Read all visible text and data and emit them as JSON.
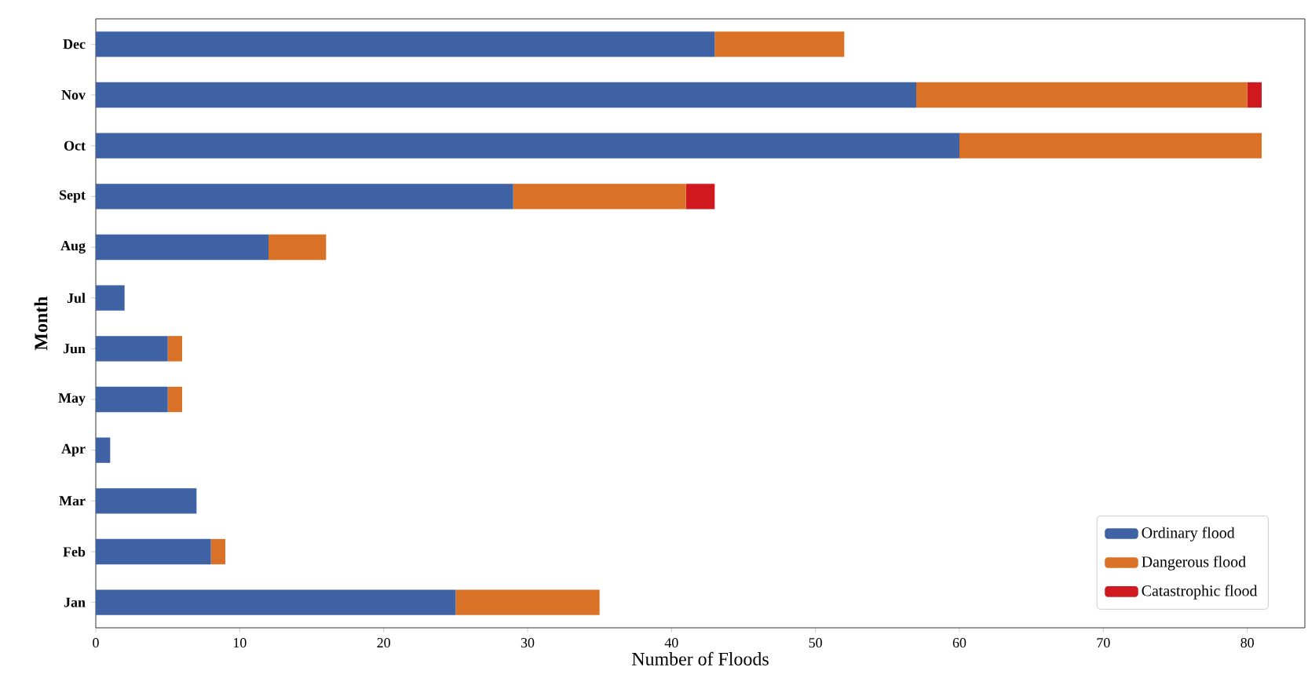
{
  "chart_data": {
    "type": "bar",
    "orientation": "horizontal",
    "stacked": true,
    "xlabel": "Number of Floods",
    "ylabel": "Month",
    "categories": [
      "Dec",
      "Nov",
      "Oct",
      "Sept",
      "Aug",
      "Jul",
      "Jun",
      "May",
      "Apr",
      "Mar",
      "Feb",
      "Jan"
    ],
    "series": [
      {
        "name": "Ordinary flood",
        "color": "#3f62a5",
        "values": [
          43,
          57,
          60,
          29,
          12,
          2,
          5,
          5,
          1,
          7,
          8,
          25
        ]
      },
      {
        "name": "Dangerous flood",
        "color": "#d97126",
        "values": [
          9,
          23,
          21,
          12,
          4,
          0,
          1,
          1,
          0,
          0,
          1,
          10
        ]
      },
      {
        "name": "Catastrophic flood",
        "color": "#d0191f",
        "values": [
          0,
          1,
          0,
          2,
          0,
          0,
          0,
          0,
          0,
          0,
          0,
          0
        ]
      }
    ],
    "xlim": [
      0,
      84
    ],
    "xticks": [
      0,
      10,
      20,
      30,
      40,
      50,
      60,
      70,
      80
    ],
    "legend": "bottom right",
    "grid": false
  }
}
